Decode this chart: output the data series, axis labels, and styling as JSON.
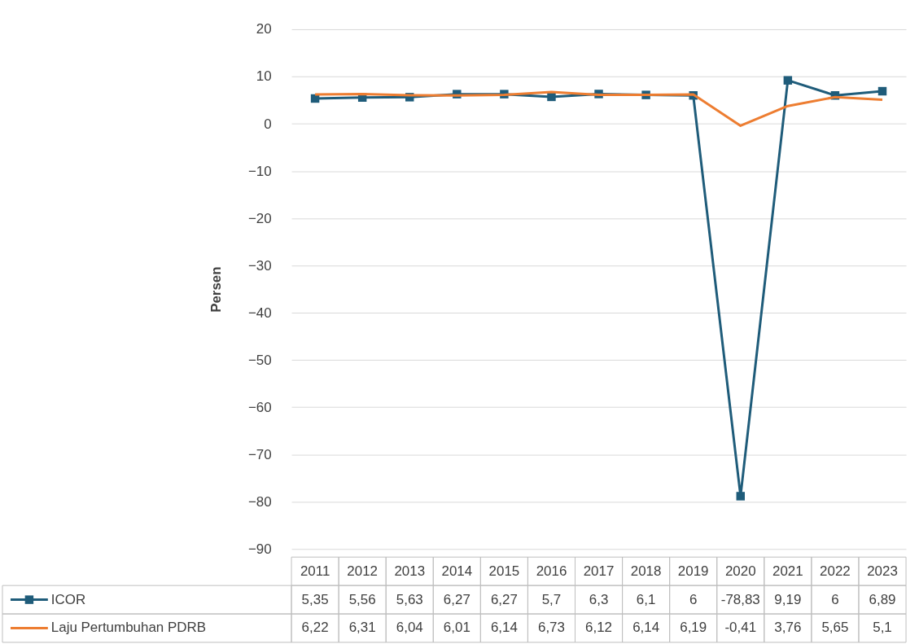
{
  "chart_data": {
    "type": "line",
    "ylabel": "Persen",
    "categories": [
      "2011",
      "2012",
      "2013",
      "2014",
      "2015",
      "2016",
      "2017",
      "2018",
      "2019",
      "2020",
      "2021",
      "2022",
      "2023"
    ],
    "ylim": [
      -90,
      20
    ],
    "yticks": [
      -90,
      -80,
      -70,
      -60,
      -50,
      -40,
      -30,
      -20,
      -10,
      0,
      10,
      20
    ],
    "grid": "y",
    "legend": "bottom left",
    "series": [
      {
        "name": "ICOR",
        "color": "#1f5c7a",
        "marker": "square",
        "values": [
          5.35,
          5.56,
          5.63,
          6.27,
          6.27,
          5.7,
          6.3,
          6.1,
          6,
          -78.83,
          9.19,
          6,
          6.89
        ],
        "value_labels": [
          "5,35",
          "5,56",
          "5,63",
          "6,27",
          "6,27",
          "5,7",
          "6,3",
          "6,1",
          "6",
          "-78,83",
          "9,19",
          "6",
          "6,89"
        ]
      },
      {
        "name": "Laju Pertumbuhan PDRB",
        "color": "#ed7d31",
        "marker": "none",
        "values": [
          6.22,
          6.31,
          6.04,
          6.01,
          6.14,
          6.73,
          6.12,
          6.14,
          6.19,
          -0.41,
          3.76,
          5.65,
          5.1
        ],
        "value_labels": [
          "6,22",
          "6,31",
          "6,04",
          "6,01",
          "6,14",
          "6,73",
          "6,12",
          "6,14",
          "6,19",
          "-0,41",
          "3,76",
          "5,65",
          "5,1"
        ]
      }
    ]
  }
}
